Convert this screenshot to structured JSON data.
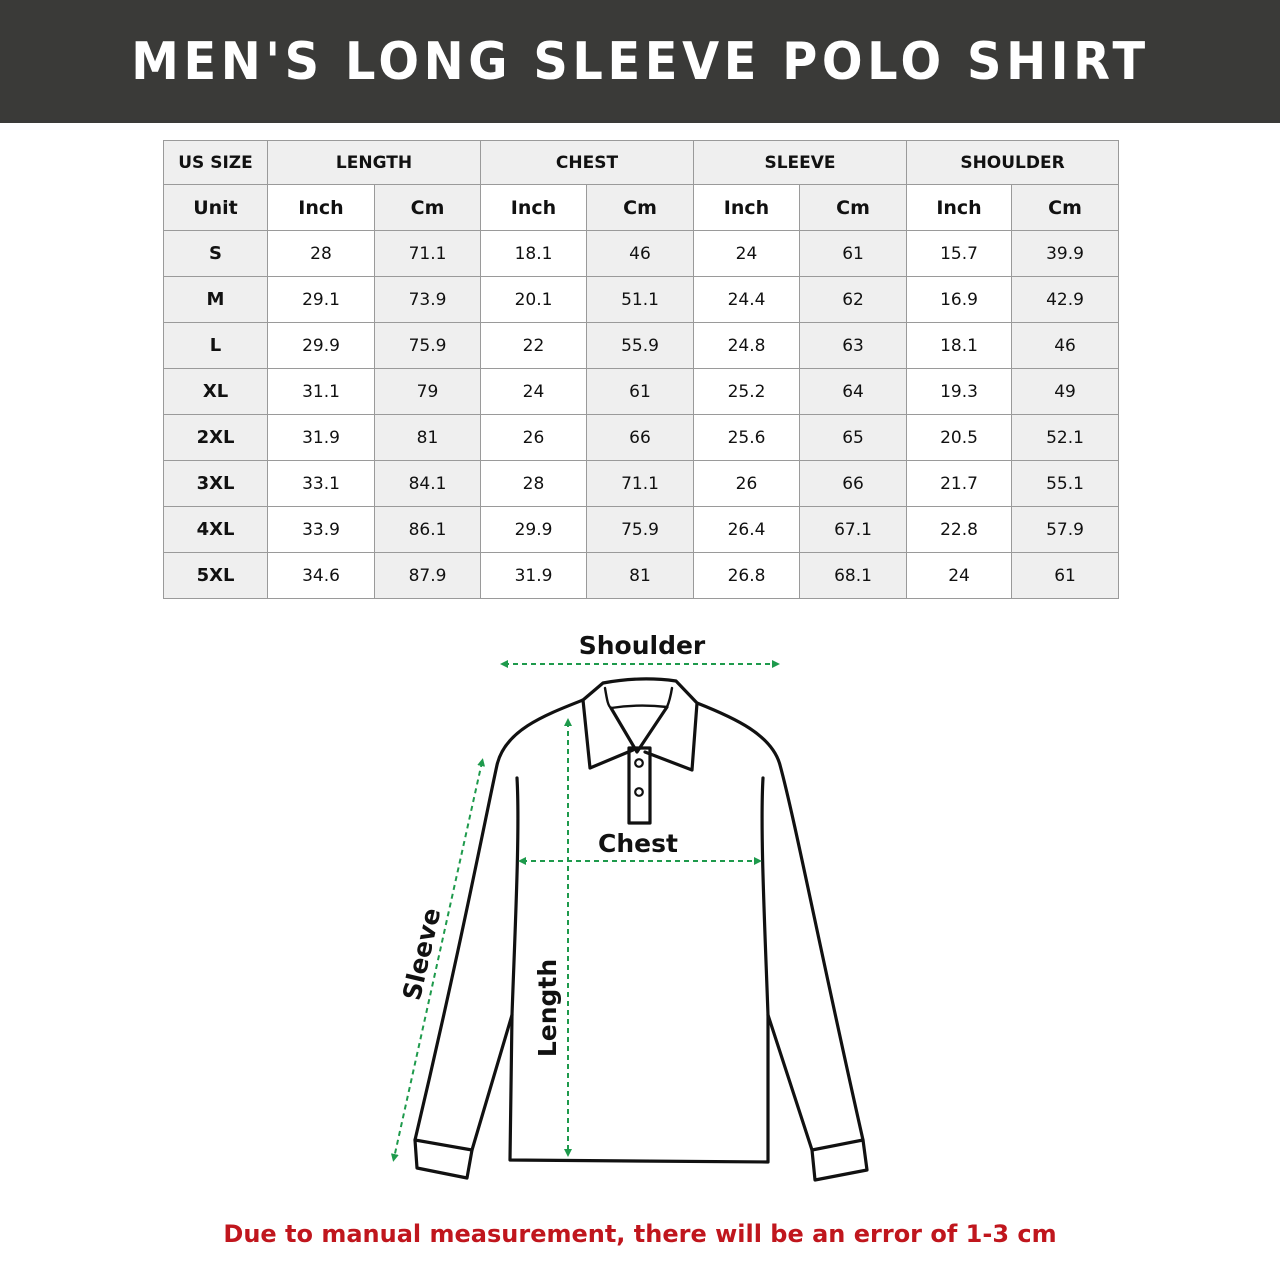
{
  "title": "MEN'S LONG SLEEVE POLO SHIRT",
  "table": {
    "header_groups": [
      "US SIZE",
      "LENGTH",
      "CHEST",
      "SLEEVE",
      "SHOULDER"
    ],
    "unit_row": [
      "Unit",
      "Inch",
      "Cm",
      "Inch",
      "Cm",
      "Inch",
      "Cm",
      "Inch",
      "Cm"
    ],
    "rows": [
      [
        "S",
        "28",
        "71.1",
        "18.1",
        "46",
        "24",
        "61",
        "15.7",
        "39.9"
      ],
      [
        "M",
        "29.1",
        "73.9",
        "20.1",
        "51.1",
        "24.4",
        "62",
        "16.9",
        "42.9"
      ],
      [
        "L",
        "29.9",
        "75.9",
        "22",
        "55.9",
        "24.8",
        "63",
        "18.1",
        "46"
      ],
      [
        "XL",
        "31.1",
        "79",
        "24",
        "61",
        "25.2",
        "64",
        "19.3",
        "49"
      ],
      [
        "2XL",
        "31.9",
        "81",
        "26",
        "66",
        "25.6",
        "65",
        "20.5",
        "52.1"
      ],
      [
        "3XL",
        "33.1",
        "84.1",
        "28",
        "71.1",
        "26",
        "66",
        "21.7",
        "55.1"
      ],
      [
        "4XL",
        "33.9",
        "86.1",
        "29.9",
        "75.9",
        "26.4",
        "67.1",
        "22.8",
        "57.9"
      ],
      [
        "5XL",
        "34.6",
        "87.9",
        "31.9",
        "81",
        "26.8",
        "68.1",
        "24",
        "61"
      ]
    ]
  },
  "diagram": {
    "labels": {
      "shoulder": "Shoulder",
      "chest": "Chest",
      "length": "Length",
      "sleeve": "Sleeve"
    },
    "arrow_color": "#1e9a4c"
  },
  "note": "Due to manual measurement, there will be an error of 1-3 cm",
  "colors": {
    "banner": "#3a3a38",
    "note": "#c0161d"
  }
}
